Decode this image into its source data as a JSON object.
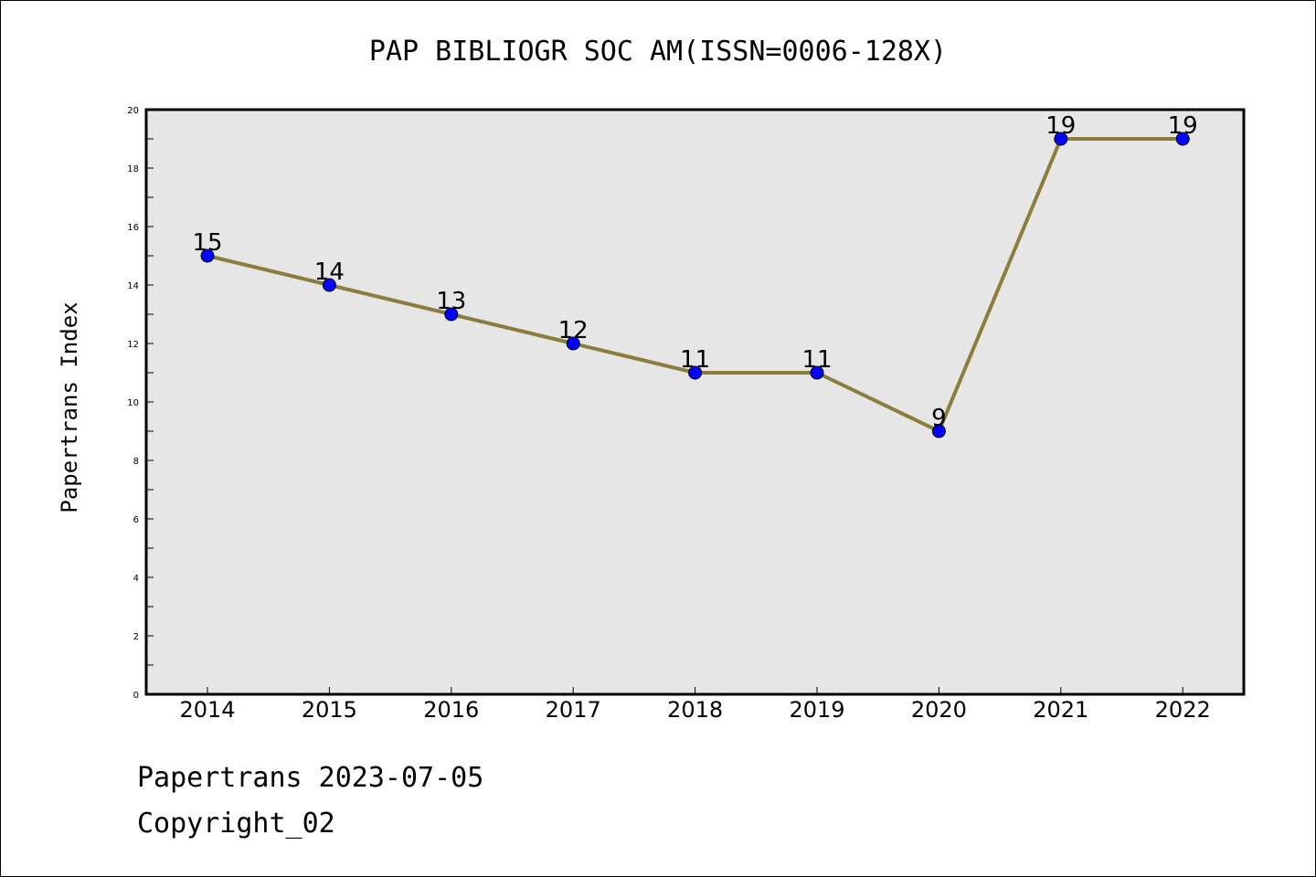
{
  "chart_data": {
    "type": "line",
    "title": "PAP BIBLIOGR SOC AM(ISSN=0006-128X)",
    "xlabel": "",
    "ylabel": "Papertrans Index",
    "categories": [
      "2014",
      "2015",
      "2016",
      "2017",
      "2018",
      "2019",
      "2020",
      "2021",
      "2022"
    ],
    "values": [
      15,
      14,
      13,
      12,
      11,
      11,
      9,
      19,
      19
    ],
    "data_labels": [
      "15",
      "14",
      "13",
      "12",
      "11",
      "11",
      "9",
      "19",
      "19"
    ],
    "ylim": [
      0,
      20
    ],
    "yticks": [
      0,
      2,
      4,
      6,
      8,
      10,
      12,
      14,
      16,
      18,
      20
    ],
    "ytick_labels": [
      "0",
      "2",
      "4",
      "6",
      "8",
      "10",
      "12",
      "14",
      "16",
      "18",
      "20"
    ],
    "grid": false,
    "line_color": "#8B7D3A",
    "marker_color": "#0000FF",
    "plot_background": "#E6E6E6"
  },
  "footer": {
    "date_text": "Papertrans 2023-07-05",
    "copyright_text": "Copyright_02"
  }
}
